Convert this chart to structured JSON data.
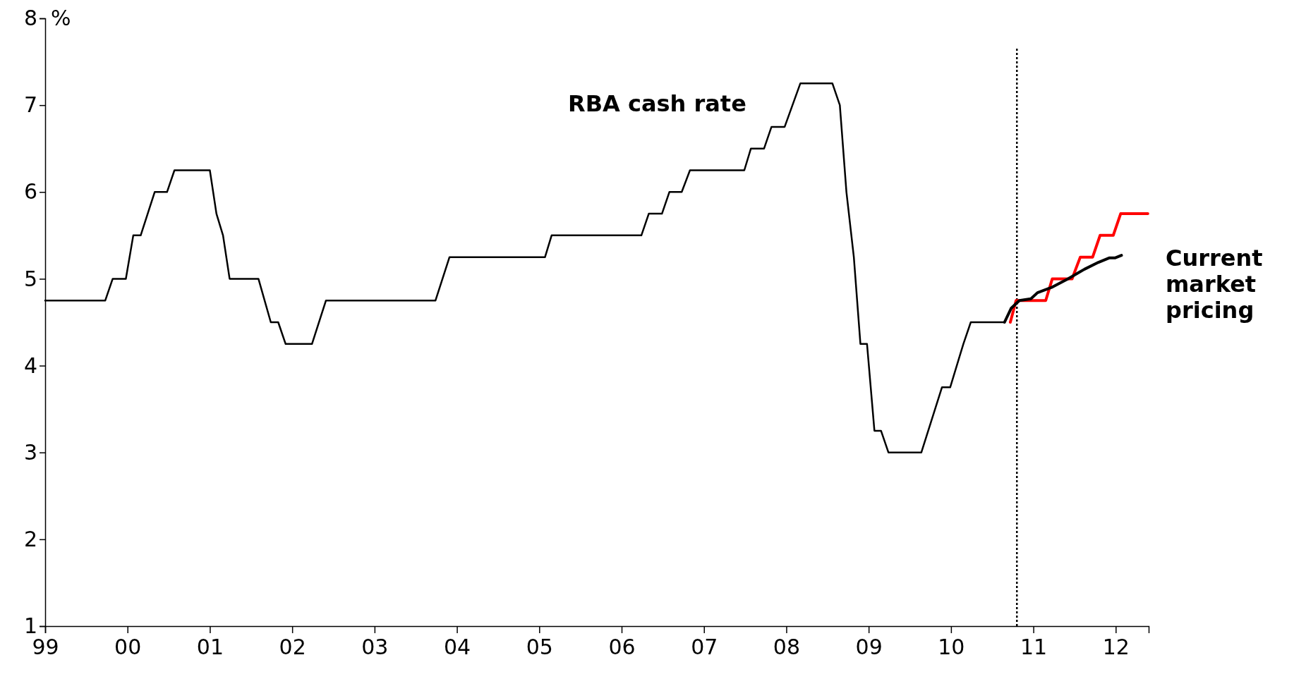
{
  "chart_data": {
    "type": "line",
    "ylabel": "%",
    "grid": false,
    "xlim": [
      1999,
      2012.4
    ],
    "xticks": [
      {
        "value": 1999,
        "label": "99"
      },
      {
        "value": 2000,
        "label": "00"
      },
      {
        "value": 2001,
        "label": "01"
      },
      {
        "value": 2002,
        "label": "02"
      },
      {
        "value": 2003,
        "label": "03"
      },
      {
        "value": 2004,
        "label": "04"
      },
      {
        "value": 2005,
        "label": "05"
      },
      {
        "value": 2006,
        "label": "06"
      },
      {
        "value": 2007,
        "label": "07"
      },
      {
        "value": 2008,
        "label": "08"
      },
      {
        "value": 2009,
        "label": "09"
      },
      {
        "value": 2010,
        "label": "10"
      },
      {
        "value": 2011,
        "label": "11"
      },
      {
        "value": 2012,
        "label": "12"
      }
    ],
    "ylim": [
      1,
      8
    ],
    "yticks": [
      1,
      2,
      3,
      4,
      5,
      6,
      7,
      8
    ],
    "ref_lines": [
      {
        "axis": "x",
        "value": 2010.8,
        "color": "#000000",
        "line_style": "dotted"
      }
    ],
    "series": [
      {
        "name": "RBA cash rate",
        "color": "#000000",
        "x": [
          1999.0,
          1999.73,
          1999.82,
          1999.98,
          2000.07,
          2000.16,
          2000.33,
          2000.48,
          2000.57,
          2001.0,
          2001.08,
          2001.16,
          2001.24,
          2001.59,
          2001.74,
          2001.83,
          2001.92,
          2002.24,
          2002.41,
          2003.74,
          2003.91,
          2005.07,
          2005.15,
          2006.24,
          2006.33,
          2006.49,
          2006.58,
          2006.73,
          2006.83,
          2007.49,
          2007.57,
          2007.73,
          2007.82,
          2007.98,
          2008.17,
          2008.56,
          2008.65,
          2008.73,
          2008.82,
          2008.9,
          2008.98,
          2009.07,
          2009.15,
          2009.24,
          2009.64,
          2009.89,
          2009.99,
          2010.15,
          2010.24,
          2010.65
        ],
        "values": [
          4.75,
          4.75,
          5.0,
          5.0,
          5.5,
          5.5,
          6.0,
          6.0,
          6.25,
          6.25,
          5.75,
          5.5,
          5.0,
          5.0,
          4.5,
          4.5,
          4.25,
          4.25,
          4.75,
          4.75,
          5.25,
          5.25,
          5.5,
          5.5,
          5.75,
          5.75,
          6.0,
          6.0,
          6.25,
          6.25,
          6.5,
          6.5,
          6.75,
          6.75,
          7.25,
          7.25,
          7.0,
          6.0,
          5.25,
          4.25,
          4.25,
          3.25,
          3.25,
          3.0,
          3.0,
          3.75,
          3.75,
          4.25,
          4.5,
          4.5
        ]
      },
      {
        "color": "#ff0000",
        "x": [
          2010.72,
          2010.79,
          2011.15,
          2011.23,
          2011.47,
          2011.57,
          2011.72,
          2011.81,
          2011.97,
          2012.06,
          2012.39
        ],
        "values": [
          4.5,
          4.75,
          4.75,
          5.0,
          5.0,
          5.25,
          5.25,
          5.5,
          5.5,
          5.75,
          5.75
        ]
      },
      {
        "name": "Current market pricing",
        "color": "#000000",
        "x": [
          2010.65,
          2010.73,
          2010.83,
          2010.97,
          2011.05,
          2011.22,
          2011.42,
          2011.62,
          2011.79,
          2011.92,
          2011.99,
          2012.07
        ],
        "values": [
          4.5,
          4.66,
          4.75,
          4.77,
          4.84,
          4.9,
          5.0,
          5.11,
          5.19,
          5.24,
          5.24,
          5.27
        ]
      }
    ]
  }
}
